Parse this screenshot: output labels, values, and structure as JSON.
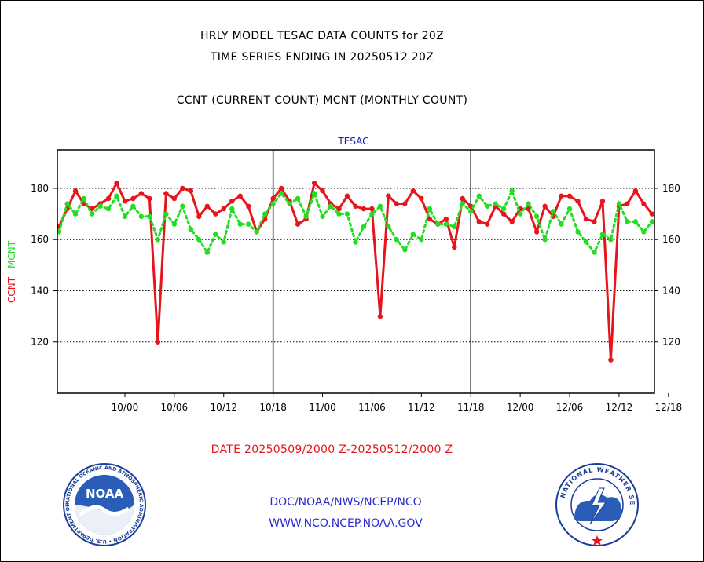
{
  "header": {
    "title_line1": "HRLY MODEL TESAC DATA COUNTS for 20Z",
    "title_line2": "TIME SERIES ENDING IN 20250512 20Z",
    "subtitle": "CCNT (CURRENT COUNT) MCNT (MONTHLY COUNT)"
  },
  "chart_data": {
    "type": "line",
    "title": "TESAC",
    "ylabel_left_1": "CCNT",
    "ylabel_left_2": "MCNT",
    "ylim": [
      100,
      195
    ],
    "yticks": [
      120,
      140,
      160,
      180
    ],
    "xlim": [
      -4.2,
      68.3
    ],
    "xtick_labels": [
      "10/00",
      "10/06",
      "10/12",
      "10/18",
      "11/00",
      "11/06",
      "11/12",
      "11/18",
      "12/00",
      "12/06",
      "12/12",
      "12/18"
    ],
    "xtick_positions": [
      4,
      10,
      16,
      22,
      28,
      34,
      40,
      46,
      52,
      58,
      64,
      70
    ],
    "day_dividers": [
      22,
      46,
      70
    ],
    "grid": true,
    "x_hour_offset_start": -4,
    "series": [
      {
        "name": "CCNT",
        "color": "#e8141c",
        "style": "solid",
        "values": [
          165,
          172,
          179,
          174,
          172,
          174,
          176,
          182,
          175,
          176,
          178,
          176,
          120,
          178,
          176,
          180,
          179,
          169,
          173,
          170,
          172,
          175,
          177,
          173,
          163,
          168,
          176,
          180,
          175,
          166,
          168,
          182,
          179,
          174,
          172,
          177,
          173,
          172,
          172,
          130,
          177,
          174,
          174,
          179,
          176,
          168,
          166,
          168,
          157,
          176,
          173,
          167,
          166,
          173,
          170,
          167,
          172,
          172,
          163,
          173,
          169,
          177,
          177,
          175,
          168,
          167,
          175,
          113,
          173,
          174,
          179,
          174,
          170
        ]
      },
      {
        "name": "MCNT",
        "color": "#22dd22",
        "style": "dotted",
        "values": [
          163,
          174,
          170,
          176,
          170,
          173,
          172,
          177,
          169,
          173,
          169,
          169,
          160,
          170,
          166,
          173,
          164,
          160,
          155,
          162,
          159,
          172,
          166,
          166,
          163,
          170,
          174,
          178,
          174,
          176,
          169,
          178,
          169,
          173,
          170,
          170,
          159,
          165,
          170,
          173,
          165,
          160,
          156,
          162,
          160,
          172,
          166,
          166,
          165,
          174,
          171,
          177,
          173,
          174,
          172,
          179,
          170,
          174,
          169,
          160,
          171,
          166,
          172,
          163,
          159,
          155,
          162,
          160,
          174,
          167,
          167,
          163,
          167
        ]
      }
    ]
  },
  "footer": {
    "date_range": "DATE 20250509/2000 Z-20250512/2000 Z",
    "link1": "DOC/NOAA/NWS/NCEP/NCO",
    "link2": "WWW.NCO.NCEP.NOAA.GOV"
  },
  "logos": {
    "noaa_text": "NOAA",
    "noaa_ring": "NATIONAL OCEANIC AND ATMOSPHERIC ADMINISTRATION • U.S. DEPARTMENT OF COMMERCE •",
    "nws_ring": "NATIONAL WEATHER SERVICE"
  }
}
